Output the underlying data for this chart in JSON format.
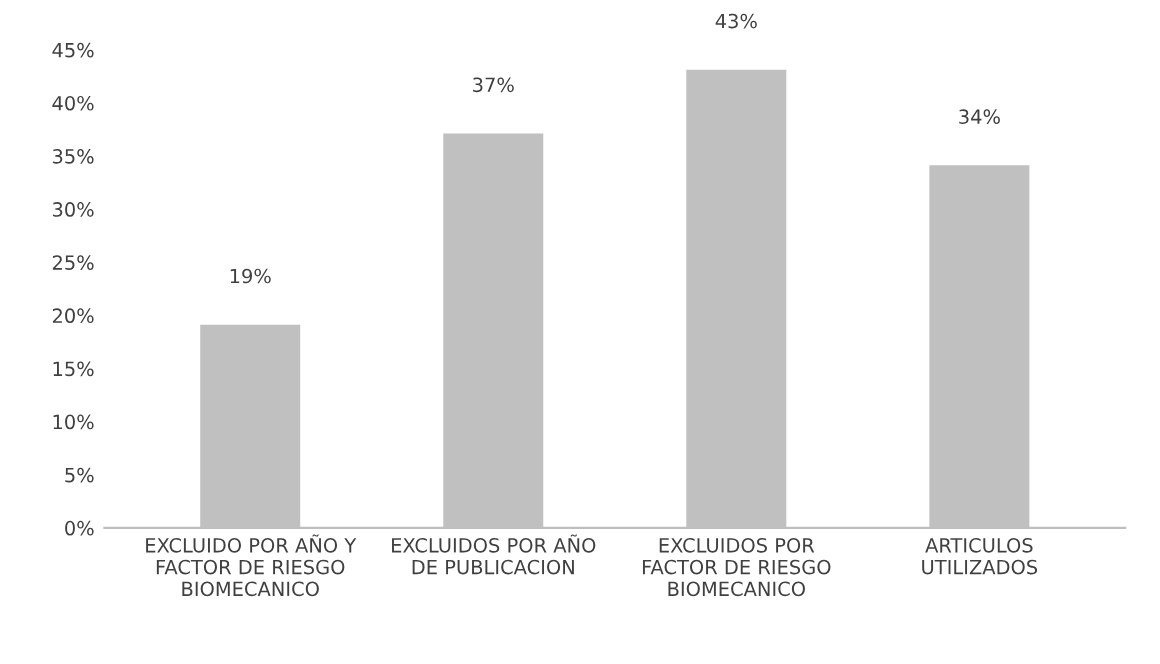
{
  "chart_data": {
    "type": "bar",
    "categories": [
      "EXCLUIDO POR AÑO Y\nFACTOR DE RIESGO\nBIOMECANICO",
      "EXCLUIDOS POR AÑO\nDE PUBLICACION",
      "EXCLUIDOS POR\nFACTOR DE RIESGO\nBIOMECANICO",
      "ARTICULOS\nUTILIZADOS"
    ],
    "values": [
      19,
      37,
      43,
      34
    ],
    "value_labels": [
      "19%",
      "37%",
      "43%",
      "34%"
    ],
    "color": "#c0c0c0",
    "ylim": [
      0,
      45
    ],
    "yticks": [
      {
        "value": 0,
        "label": "0%"
      },
      {
        "value": 5,
        "label": "5%"
      },
      {
        "value": 10,
        "label": "10%"
      },
      {
        "value": 15,
        "label": "15%"
      },
      {
        "value": 20,
        "label": "20%"
      },
      {
        "value": 25,
        "label": "25%"
      },
      {
        "value": 30,
        "label": "30%"
      },
      {
        "value": 35,
        "label": "35%"
      },
      {
        "value": 40,
        "label": "40%"
      },
      {
        "value": 45,
        "label": "45%"
      }
    ],
    "grid": false
  }
}
